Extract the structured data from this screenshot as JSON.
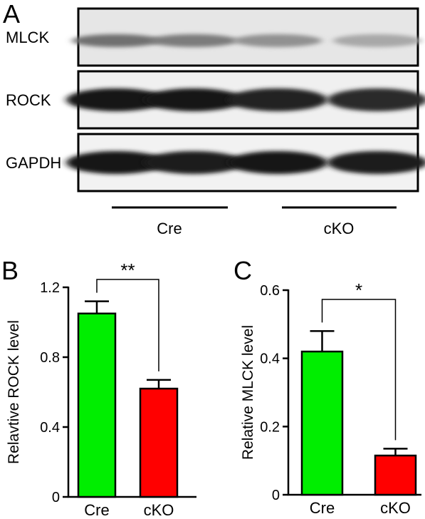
{
  "figure": {
    "panel_letters": [
      "A",
      "B",
      "C"
    ],
    "colors": {
      "cre": "#00ee00",
      "cko": "#ff0000",
      "ink": "#000000"
    }
  },
  "blot": {
    "rows": [
      {
        "label": "MLCK",
        "band_strengths": [
          0.55,
          0.5,
          0.4,
          0.3
        ]
      },
      {
        "label": "ROCK",
        "band_strengths": [
          0.95,
          0.95,
          0.9,
          0.85
        ]
      },
      {
        "label": "GAPDH",
        "band_strengths": [
          0.95,
          0.92,
          0.95,
          0.92
        ]
      }
    ],
    "groups": [
      "Cre",
      "cKO"
    ]
  },
  "chart_data": [
    {
      "type": "bar",
      "panel": "B",
      "categories": [
        "Cre",
        "cKO"
      ],
      "values": [
        1.05,
        0.62
      ],
      "errors": [
        0.07,
        0.05
      ],
      "colors": [
        "#00ee00",
        "#ff0000"
      ],
      "ylabel": "Relavtive ROCK level",
      "xlabel": "",
      "ylim": [
        0,
        1.2
      ],
      "yticks": [
        0,
        0.4,
        0.8,
        1.2
      ],
      "ytick_labels": [
        "0",
        "0.4",
        "0.8",
        "1.2"
      ],
      "significance": "**"
    },
    {
      "type": "bar",
      "panel": "C",
      "categories": [
        "Cre",
        "cKO"
      ],
      "values": [
        0.42,
        0.115
      ],
      "errors": [
        0.06,
        0.02
      ],
      "colors": [
        "#00ee00",
        "#ff0000"
      ],
      "ylabel": "Relative MLCK level",
      "xlabel": "",
      "ylim": [
        0,
        0.6
      ],
      "yticks": [
        0,
        0.2,
        0.4,
        0.6
      ],
      "ytick_labels": [
        "0",
        "0.2",
        "0.4",
        "0.6"
      ],
      "significance": "*"
    }
  ]
}
